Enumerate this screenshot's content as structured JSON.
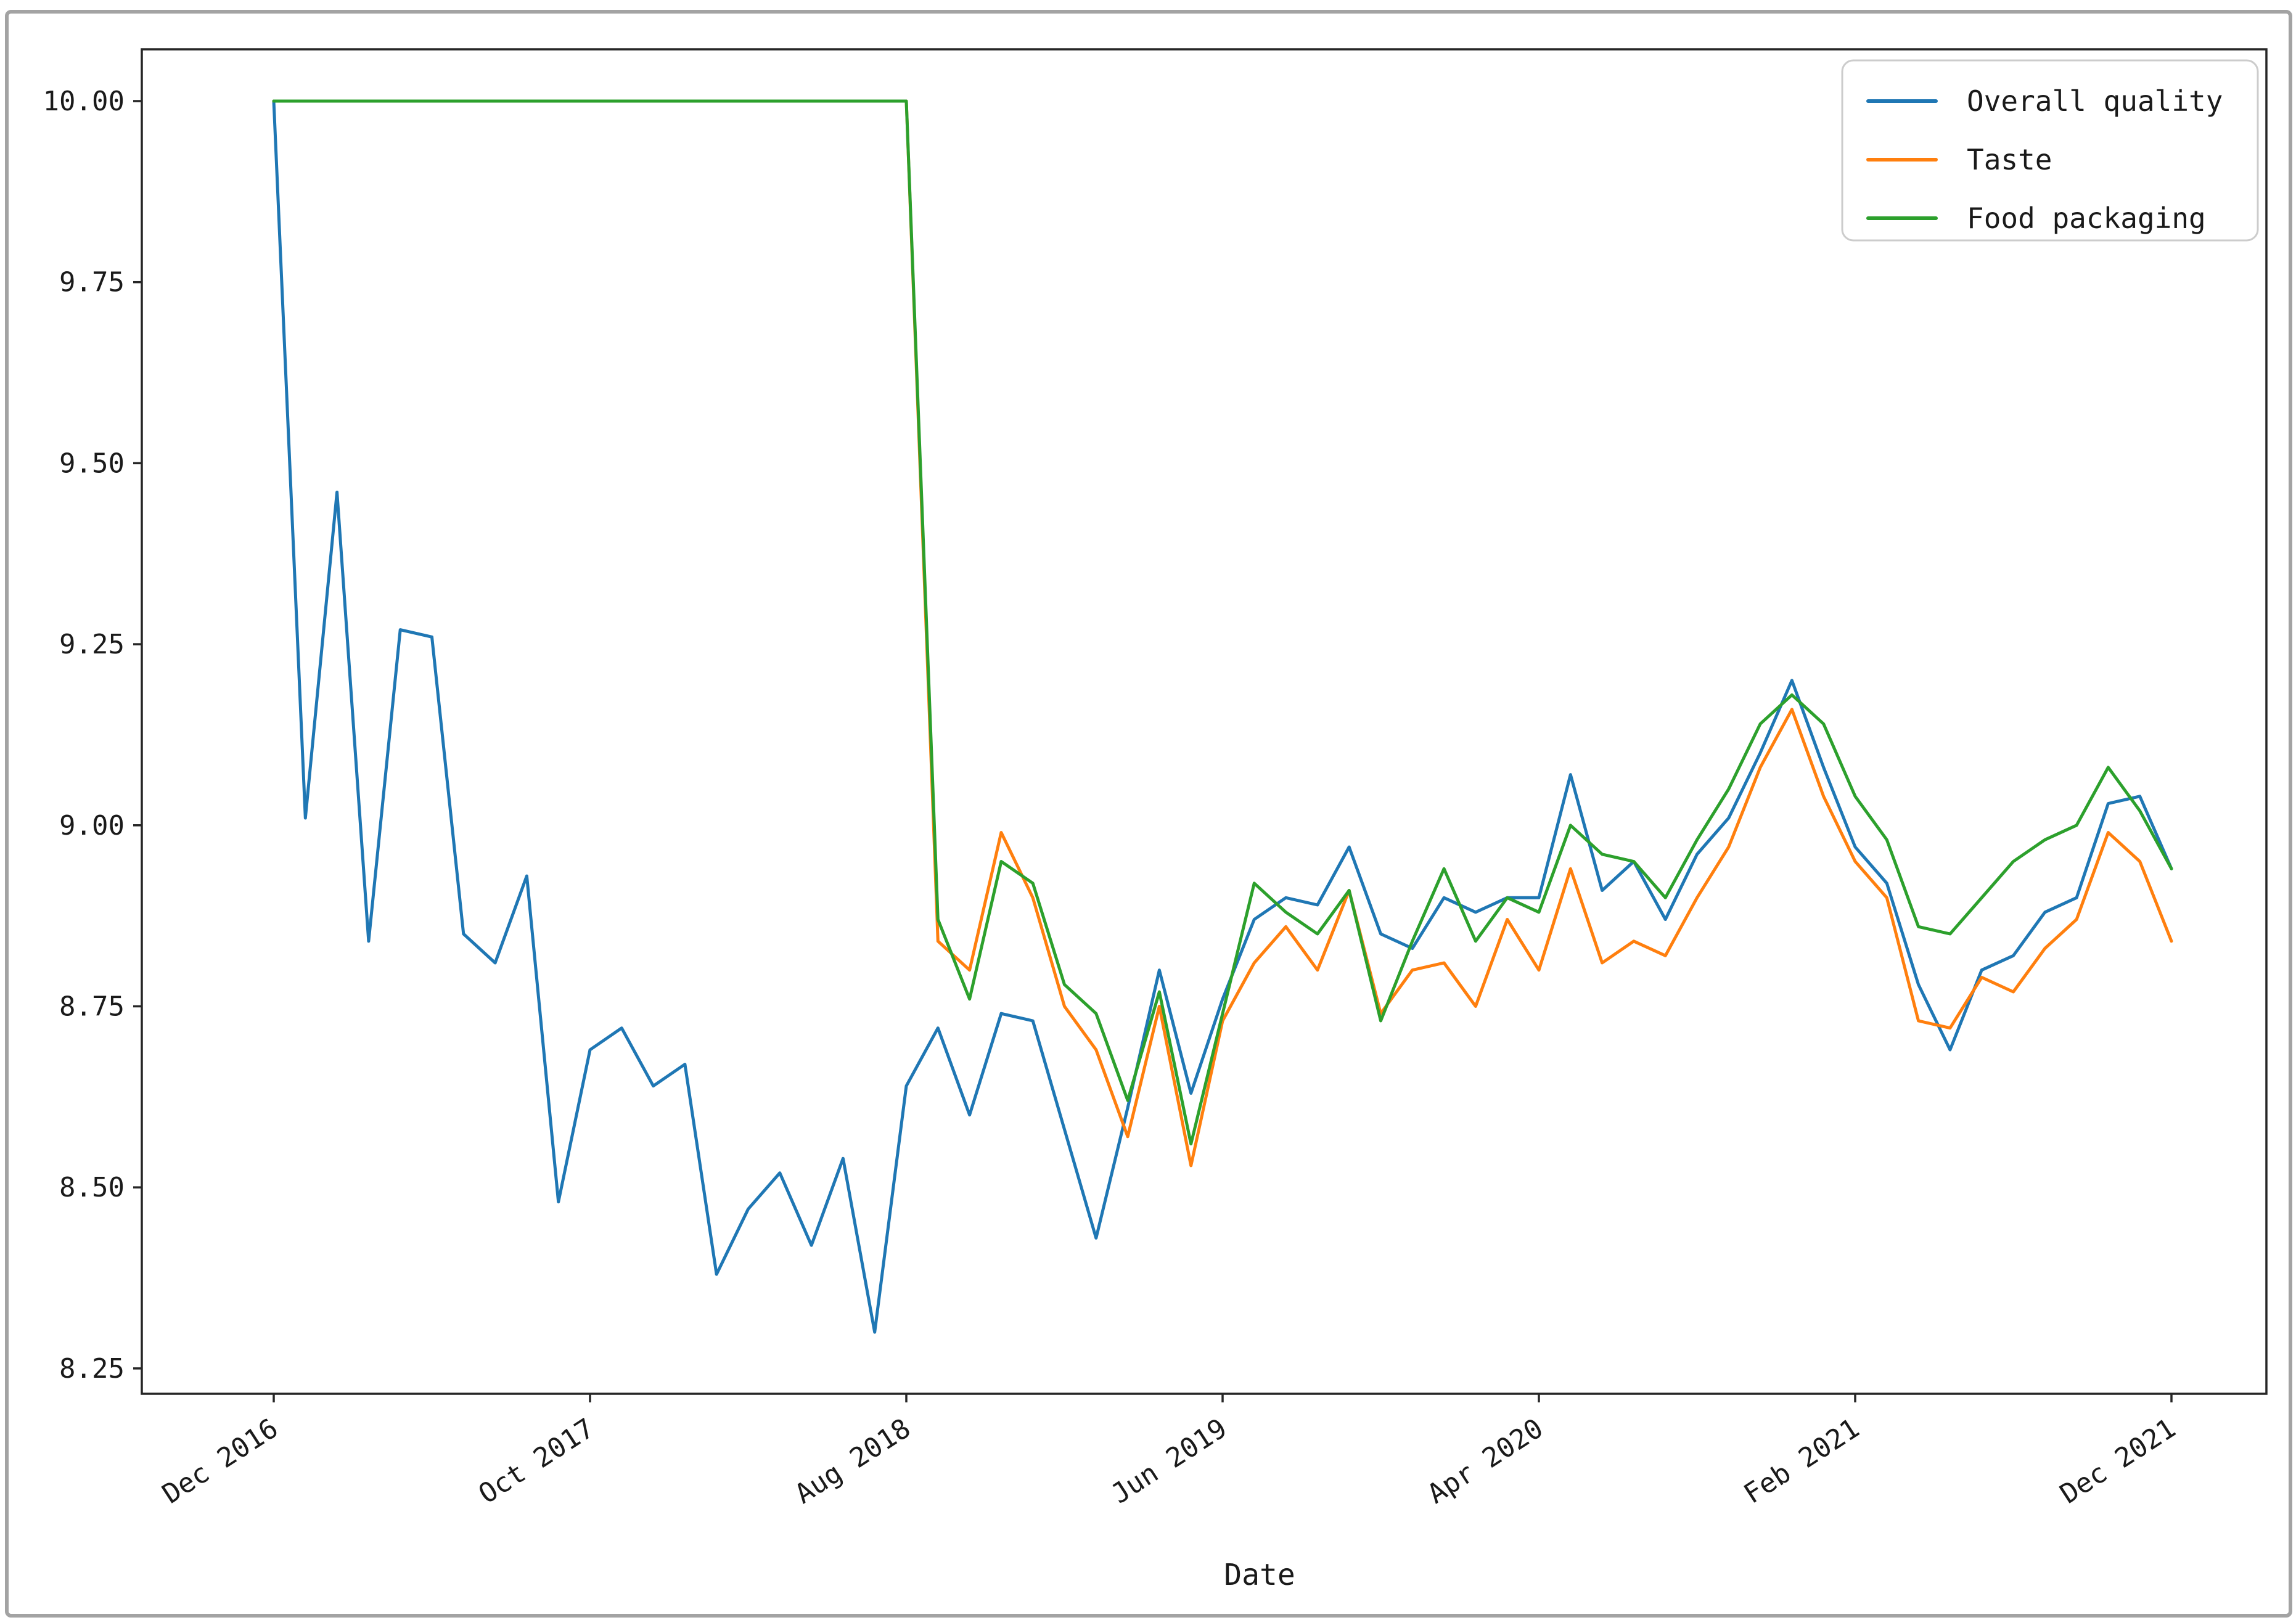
{
  "chart_data": {
    "type": "line",
    "title": "",
    "xlabel": "Date",
    "ylabel": "",
    "grid": false,
    "legend_position": "upper right",
    "ylim": [
      8.215,
      10.0715
    ],
    "y_ticks": [
      "10.00",
      "9.75",
      "9.50",
      "9.25",
      "9.00",
      "8.75",
      "8.50",
      "8.25"
    ],
    "y_tick_values": [
      10.0,
      9.75,
      9.5,
      9.25,
      9.0,
      8.75,
      8.5,
      8.25
    ],
    "x_tick_indices": [
      0,
      10,
      20,
      30,
      40,
      50,
      60
    ],
    "x_tick_labels": [
      "Dec 2016",
      "Oct 2017",
      "Aug 2018",
      "Jun 2019",
      "Apr 2020",
      "Feb 2021",
      "Dec 2021"
    ],
    "x": [
      "Dec 2016",
      "Jan 2017",
      "Feb 2017",
      "Mar 2017",
      "Apr 2017",
      "May 2017",
      "Jun 2017",
      "Jul 2017",
      "Aug 2017",
      "Sep 2017",
      "Oct 2017",
      "Nov 2017",
      "Dec 2017",
      "Jan 2018",
      "Feb 2018",
      "Mar 2018",
      "Apr 2018",
      "May 2018",
      "Jun 2018",
      "Jul 2018",
      "Aug 2018",
      "Sep 2018",
      "Oct 2018",
      "Nov 2018",
      "Dec 2018",
      "Jan 2019",
      "Feb 2019",
      "Mar 2019",
      "Apr 2019",
      "May 2019",
      "Jun 2019",
      "Jul 2019",
      "Aug 2019",
      "Sep 2019",
      "Oct 2019",
      "Nov 2019",
      "Dec 2019",
      "Jan 2020",
      "Feb 2020",
      "Mar 2020",
      "Apr 2020",
      "May 2020",
      "Jun 2020",
      "Jul 2020",
      "Aug 2020",
      "Sep 2020",
      "Oct 2020",
      "Nov 2020",
      "Dec 2020",
      "Jan 2021",
      "Feb 2021",
      "Mar 2021",
      "Apr 2021",
      "May 2021",
      "Jun 2021",
      "Jul 2021",
      "Aug 2021",
      "Sep 2021",
      "Oct 2021",
      "Nov 2021",
      "Dec 2021"
    ],
    "series": [
      {
        "name": "Overall quality",
        "color": "#1f77b4",
        "values": [
          10.0,
          9.01,
          9.46,
          8.84,
          9.27,
          9.26,
          8.85,
          8.81,
          8.93,
          8.48,
          8.69,
          8.72,
          8.64,
          8.67,
          8.38,
          8.47,
          8.52,
          8.42,
          8.54,
          8.3,
          8.64,
          8.72,
          8.6,
          8.74,
          8.73,
          8.58,
          8.43,
          8.61,
          8.8,
          8.63,
          8.76,
          8.87,
          8.9,
          8.89,
          8.97,
          8.85,
          8.83,
          8.9,
          8.88,
          8.9,
          8.9,
          9.07,
          8.91,
          8.95,
          8.87,
          8.96,
          9.01,
          9.1,
          9.2,
          9.08,
          8.97,
          8.92,
          8.78,
          8.69,
          8.8,
          8.82,
          8.88,
          8.9,
          9.03,
          9.04,
          8.94
        ]
      },
      {
        "name": "Taste",
        "color": "#ff7f0e",
        "values": [
          10.0,
          10.0,
          10.0,
          10.0,
          10.0,
          10.0,
          10.0,
          10.0,
          10.0,
          10.0,
          10.0,
          10.0,
          10.0,
          10.0,
          10.0,
          10.0,
          10.0,
          10.0,
          10.0,
          10.0,
          10.0,
          8.84,
          8.8,
          8.99,
          8.9,
          8.75,
          8.69,
          8.57,
          8.75,
          8.53,
          8.73,
          8.81,
          8.86,
          8.8,
          8.91,
          8.74,
          8.8,
          8.81,
          8.75,
          8.87,
          8.8,
          8.94,
          8.81,
          8.84,
          8.82,
          8.9,
          8.97,
          9.08,
          9.16,
          9.04,
          8.95,
          8.9,
          8.73,
          8.72,
          8.79,
          8.77,
          8.83,
          8.87,
          8.99,
          8.95,
          8.84
        ]
      },
      {
        "name": "Food packaging",
        "color": "#2ca02c",
        "values": [
          10.0,
          10.0,
          10.0,
          10.0,
          10.0,
          10.0,
          10.0,
          10.0,
          10.0,
          10.0,
          10.0,
          10.0,
          10.0,
          10.0,
          10.0,
          10.0,
          10.0,
          10.0,
          10.0,
          10.0,
          10.0,
          8.87,
          8.76,
          8.95,
          8.92,
          8.78,
          8.74,
          8.62,
          8.77,
          8.56,
          8.74,
          8.92,
          8.88,
          8.85,
          8.91,
          8.73,
          8.84,
          8.94,
          8.84,
          8.9,
          8.88,
          9.0,
          8.96,
          8.95,
          8.9,
          8.98,
          9.05,
          9.14,
          9.18,
          9.14,
          9.04,
          8.98,
          8.86,
          8.85,
          8.9,
          8.95,
          8.98,
          9.0,
          9.08,
          9.02,
          8.94
        ]
      }
    ]
  },
  "legend": {
    "items": [
      {
        "label": "Overall quality",
        "color": "#1f77b4"
      },
      {
        "label": "Taste",
        "color": "#ff7f0e"
      },
      {
        "label": "Food packaging",
        "color": "#2ca02c"
      }
    ]
  },
  "axes": {
    "x_label": "Date",
    "spine_color": "#262626",
    "tick_color": "#262626"
  }
}
